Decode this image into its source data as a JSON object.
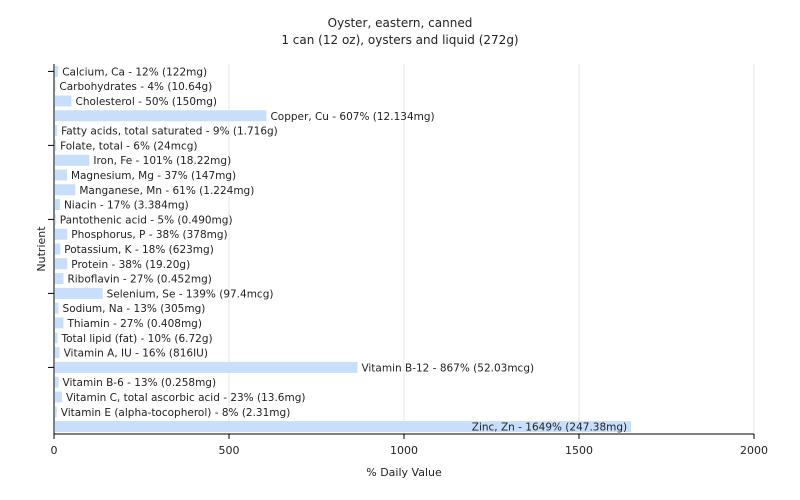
{
  "chart_data": {
    "type": "bar",
    "orientation": "horizontal",
    "title": "Oyster, eastern, canned",
    "subtitle": "1 can (12 oz), oysters and liquid (272g)",
    "xlabel": "% Daily Value",
    "ylabel": "Nutrient",
    "xlim": [
      0,
      2000
    ],
    "xticks": [
      "0",
      "500",
      "1000",
      "1500",
      "2000"
    ],
    "grid": true,
    "bar_color": "#c7dffa",
    "categories": [
      "Calcium, Ca",
      "Carbohydrates",
      "Cholesterol",
      "Copper, Cu",
      "Fatty acids, total saturated",
      "Folate, total",
      "Iron, Fe",
      "Magnesium, Mg",
      "Manganese, Mn",
      "Niacin",
      "Pantothenic acid",
      "Phosphorus, P",
      "Potassium, K",
      "Protein",
      "Riboflavin",
      "Selenium, Se",
      "Sodium, Na",
      "Thiamin",
      "Total lipid (fat)",
      "Vitamin A, IU",
      "Vitamin B-12",
      "Vitamin B-6",
      "Vitamin C, total ascorbic acid",
      "Vitamin E (alpha-tocopherol)",
      "Zinc, Zn"
    ],
    "values": [
      12,
      4,
      50,
      607,
      9,
      6,
      101,
      37,
      61,
      17,
      5,
      38,
      18,
      38,
      27,
      139,
      13,
      27,
      10,
      16,
      867,
      13,
      23,
      8,
      1649
    ],
    "labels": [
      "Calcium, Ca - 12% (122mg)",
      "Carbohydrates - 4% (10.64g)",
      "Cholesterol - 50% (150mg)",
      "Copper, Cu - 607% (12.134mg)",
      "Fatty acids, total saturated - 9% (1.716g)",
      "Folate, total - 6% (24mcg)",
      "Iron, Fe - 101% (18.22mg)",
      "Magnesium, Mg - 37% (147mg)",
      "Manganese, Mn - 61% (1.224mg)",
      "Niacin - 17% (3.384mg)",
      "Pantothenic acid - 5% (0.490mg)",
      "Phosphorus, P - 38% (378mg)",
      "Potassium, K - 18% (623mg)",
      "Protein - 38% (19.20g)",
      "Riboflavin - 27% (0.452mg)",
      "Selenium, Se - 139% (97.4mcg)",
      "Sodium, Na - 13% (305mg)",
      "Thiamin - 27% (0.408mg)",
      "Total lipid (fat) - 10% (6.72g)",
      "Vitamin A, IU - 16% (816IU)",
      "Vitamin B-12 - 867% (52.03mcg)",
      "Vitamin B-6 - 13% (0.258mg)",
      "Vitamin C, total ascorbic acid - 23% (13.6mg)",
      "Vitamin E (alpha-tocopherol) - 8% (2.31mg)",
      "Zinc, Zn - 1649% (247.38mg)"
    ]
  }
}
